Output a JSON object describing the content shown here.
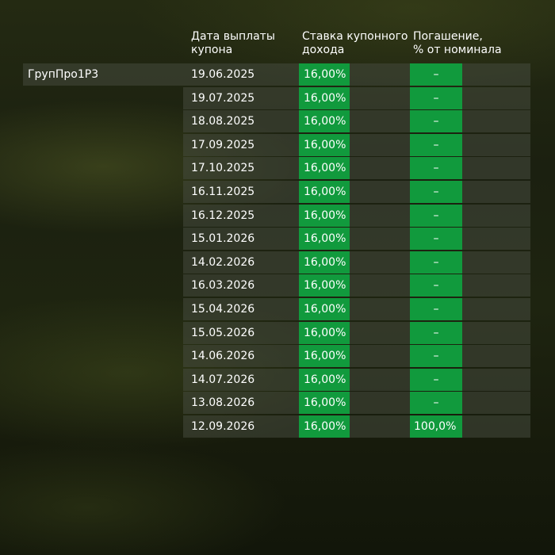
{
  "headers": {
    "date": "Дата выплаты\nкупона",
    "rate": "Ставка купонного\nдохода",
    "redemption": "Погашение,\n% от номинала"
  },
  "issuer": "ГрупПро1Р3",
  "colors": {
    "cell_green": "#119a3d",
    "row_bg": "#464a3e"
  },
  "rows": [
    {
      "date": "19.06.2025",
      "rate": "16,00%",
      "redemption": "–"
    },
    {
      "date": "19.07.2025",
      "rate": "16,00%",
      "redemption": "–"
    },
    {
      "date": "18.08.2025",
      "rate": "16,00%",
      "redemption": "–"
    },
    {
      "date": "17.09.2025",
      "rate": "16,00%",
      "redemption": "–"
    },
    {
      "date": "17.10.2025",
      "rate": "16,00%",
      "redemption": "–"
    },
    {
      "date": "16.11.2025",
      "rate": "16,00%",
      "redemption": "–"
    },
    {
      "date": "16.12.2025",
      "rate": "16,00%",
      "redemption": "–"
    },
    {
      "date": "15.01.2026",
      "rate": "16,00%",
      "redemption": "–"
    },
    {
      "date": "14.02.2026",
      "rate": "16,00%",
      "redemption": "–"
    },
    {
      "date": "16.03.2026",
      "rate": "16,00%",
      "redemption": "–"
    },
    {
      "date": "15.04.2026",
      "rate": "16,00%",
      "redemption": "–"
    },
    {
      "date": "15.05.2026",
      "rate": "16,00%",
      "redemption": "–"
    },
    {
      "date": "14.06.2026",
      "rate": "16,00%",
      "redemption": "–"
    },
    {
      "date": "14.07.2026",
      "rate": "16,00%",
      "redemption": "–"
    },
    {
      "date": "13.08.2026",
      "rate": "16,00%",
      "redemption": "–"
    },
    {
      "date": "12.09.2026",
      "rate": "16,00%",
      "redemption": "100,0%"
    }
  ]
}
